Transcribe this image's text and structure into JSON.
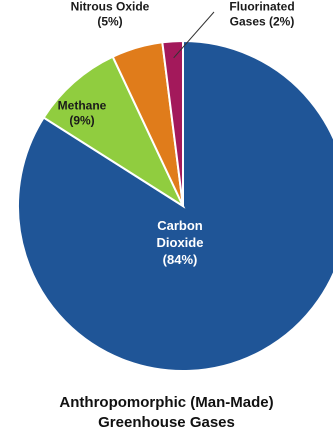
{
  "chart_data": {
    "type": "pie",
    "categories": [
      "Carbon Dioxide",
      "Methane",
      "Nitrous Oxide",
      "Fluorinated Gases"
    ],
    "values": [
      84,
      9,
      5,
      2
    ],
    "value_labels": [
      "(84%)",
      "(9%)",
      "(5%)",
      "(2%)"
    ],
    "label_lines": [
      [
        "Carbon",
        "Dioxide",
        "(84%)"
      ],
      [
        "Methane",
        "(9%)"
      ],
      [
        "Nitrous Oxide",
        "(5%)"
      ],
      [
        "Fluorinated",
        "Gases (2%)"
      ]
    ],
    "colors": [
      "#1f5597",
      "#90cd3f",
      "#e07c1b",
      "#a3195b"
    ],
    "title_lines": [
      "Anthropomorphic (Man-Made)",
      "Greenhouse Gases"
    ],
    "start_angle_deg": 0,
    "direction": "clockwise"
  }
}
